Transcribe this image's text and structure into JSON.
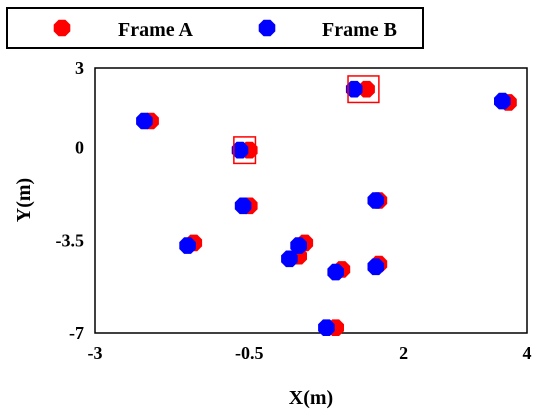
{
  "chart_data": {
    "type": "scatter",
    "xlabel": "X(m)",
    "ylabel": "Y(m)",
    "xlim": [
      -3,
      4
    ],
    "ylim": [
      -7,
      3
    ],
    "xticks": [
      "-3",
      "-0.5",
      "2",
      "4"
    ],
    "yticks": [
      "3",
      "0",
      "-3.5",
      "-7"
    ],
    "xtick_values": [
      -3,
      -0.5,
      2,
      4
    ],
    "ytick_values": [
      3,
      0,
      -3.5,
      -7
    ],
    "grid": false,
    "legend_position": "top",
    "series": [
      {
        "name": "Frame A",
        "color": "#ff0000",
        "points": [
          [
            -2.1,
            1.0
          ],
          [
            -1.4,
            -3.6
          ],
          [
            -0.5,
            -0.1
          ],
          [
            -0.5,
            -2.2
          ],
          [
            0.4,
            -3.6
          ],
          [
            0.3,
            -4.1
          ],
          [
            1.0,
            -4.6
          ],
          [
            1.6,
            -2.0
          ],
          [
            1.6,
            -4.4
          ],
          [
            3.7,
            1.7
          ],
          [
            1.4,
            2.2
          ],
          [
            0.9,
            -6.8
          ]
        ]
      },
      {
        "name": "Frame B",
        "color": "#0000ff",
        "points": [
          [
            -2.2,
            1.0
          ],
          [
            -1.5,
            -3.7
          ],
          [
            -0.65,
            -0.1
          ],
          [
            -0.6,
            -2.2
          ],
          [
            0.3,
            -3.7
          ],
          [
            0.15,
            -4.2
          ],
          [
            0.9,
            -4.7
          ],
          [
            1.55,
            -2.0
          ],
          [
            1.55,
            -4.5
          ],
          [
            3.6,
            1.75
          ],
          [
            1.2,
            2.2
          ],
          [
            0.75,
            -6.8
          ]
        ]
      }
    ],
    "annotations": [
      {
        "type": "highlight-box",
        "x_range": [
          -0.75,
          -0.4
        ],
        "y_range": [
          -0.6,
          0.4
        ],
        "color": "#ff0000"
      },
      {
        "type": "highlight-box",
        "x_range": [
          1.1,
          1.6
        ],
        "y_range": [
          1.7,
          2.7
        ],
        "color": "#ff0000"
      }
    ]
  }
}
